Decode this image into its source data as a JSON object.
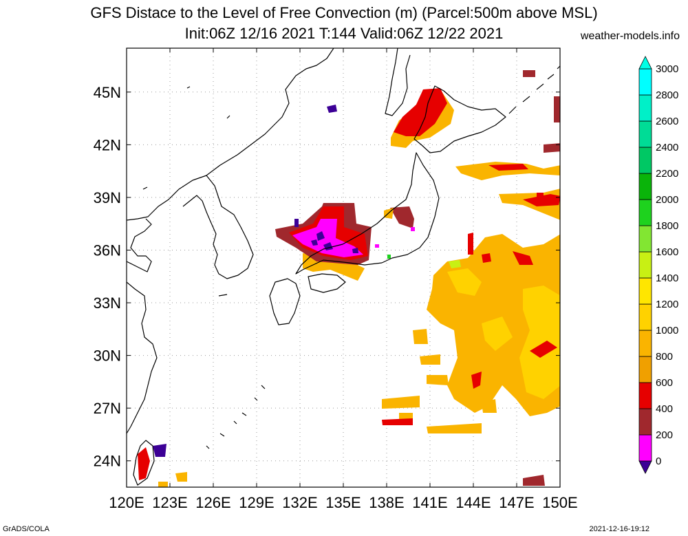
{
  "title": "GFS Distace to the Level of Free Convection (m) (Parcel:500m above MSL)",
  "subtitle": "Init:06Z 12/16 2021 T:144 Valid:06Z 12/22 2021",
  "site": "weather-models.info",
  "footer_left": "GrADS/COLA",
  "footer_right": "2021-12-16-19:12",
  "map": {
    "lon_range": [
      120,
      150
    ],
    "lat_range": [
      22.5,
      47.5
    ],
    "lon_ticks": [
      "120E",
      "123E",
      "126E",
      "129E",
      "132E",
      "135E",
      "138E",
      "141E",
      "144E",
      "147E",
      "150E"
    ],
    "lat_ticks": [
      "24N",
      "27N",
      "30N",
      "33N",
      "36N",
      "39N",
      "42N",
      "45N"
    ],
    "grid": true
  },
  "colorbar": {
    "levels": [
      "0",
      "200",
      "400",
      "600",
      "800",
      "1000",
      "1200",
      "1400",
      "1600",
      "1800",
      "2000",
      "2200",
      "2400",
      "2600",
      "2800",
      "3000"
    ],
    "colors": [
      "#3c0096",
      "#ff00ff",
      "#a0282d",
      "#e60000",
      "#f0a000",
      "#fab400",
      "#ffd200",
      "#ffe600",
      "#c8f014",
      "#82e632",
      "#1ed21e",
      "#0ab40a",
      "#00c864",
      "#00dc96",
      "#00f0c8",
      "#00ffff",
      "#00ffe6"
    ]
  }
}
